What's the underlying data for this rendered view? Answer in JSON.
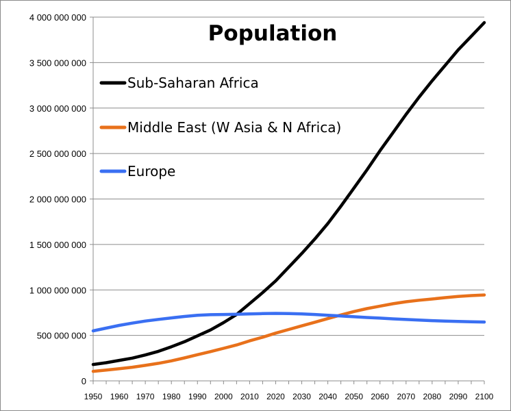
{
  "chart_data": {
    "type": "line",
    "title": "Population",
    "xlabel": "",
    "ylabel": "",
    "x": [
      1950,
      1955,
      1960,
      1965,
      1970,
      1975,
      1980,
      1985,
      1990,
      1995,
      2000,
      2005,
      2010,
      2015,
      2020,
      2025,
      2030,
      2035,
      2040,
      2045,
      2050,
      2055,
      2060,
      2065,
      2070,
      2075,
      2080,
      2085,
      2090,
      2095,
      2100
    ],
    "xlim": [
      1950,
      2100
    ],
    "ylim": [
      0,
      4000000000
    ],
    "x_ticks": [
      1950,
      1960,
      1970,
      1980,
      1990,
      2000,
      2010,
      2020,
      2030,
      2040,
      2050,
      2060,
      2070,
      2080,
      2090,
      2100
    ],
    "y_ticks": [
      0,
      500000000,
      1000000000,
      1500000000,
      2000000000,
      2500000000,
      3000000000,
      3500000000,
      4000000000
    ],
    "y_tick_labels": [
      "0",
      "500 000 000",
      "1 000 000 000",
      "1 500 000 000",
      "2 000 000 000",
      "2 500 000 000",
      "3 000 000 000",
      "3 500 000 000",
      "4 000 000 000"
    ],
    "grid": "horizontal",
    "legend_position": "top-left",
    "series": [
      {
        "name": "Sub-Saharan Africa",
        "color": "#000000",
        "values": [
          180000000,
          200000000,
          225000000,
          250000000,
          285000000,
          325000000,
          375000000,
          430000000,
          495000000,
          560000000,
          640000000,
          730000000,
          850000000,
          970000000,
          1100000000,
          1250000000,
          1400000000,
          1560000000,
          1730000000,
          1920000000,
          2120000000,
          2320000000,
          2530000000,
          2730000000,
          2930000000,
          3120000000,
          3300000000,
          3470000000,
          3640000000,
          3790000000,
          3940000000
        ]
      },
      {
        "name": "Middle East (W Asia & N Africa)",
        "color": "#e8711b",
        "values": [
          105000000,
          118000000,
          133000000,
          150000000,
          170000000,
          193000000,
          220000000,
          252000000,
          288000000,
          322000000,
          358000000,
          395000000,
          440000000,
          480000000,
          525000000,
          565000000,
          605000000,
          645000000,
          685000000,
          725000000,
          762000000,
          795000000,
          822000000,
          848000000,
          870000000,
          887000000,
          900000000,
          915000000,
          928000000,
          938000000,
          945000000
        ]
      },
      {
        "name": "Europe",
        "color": "#3a6ff2",
        "values": [
          550000000,
          580000000,
          610000000,
          635000000,
          658000000,
          676000000,
          692000000,
          708000000,
          722000000,
          728000000,
          730000000,
          732000000,
          737000000,
          740000000,
          742000000,
          740000000,
          737000000,
          730000000,
          722000000,
          713000000,
          705000000,
          697000000,
          690000000,
          682000000,
          675000000,
          668000000,
          662000000,
          657000000,
          653000000,
          650000000,
          647000000
        ]
      }
    ]
  }
}
